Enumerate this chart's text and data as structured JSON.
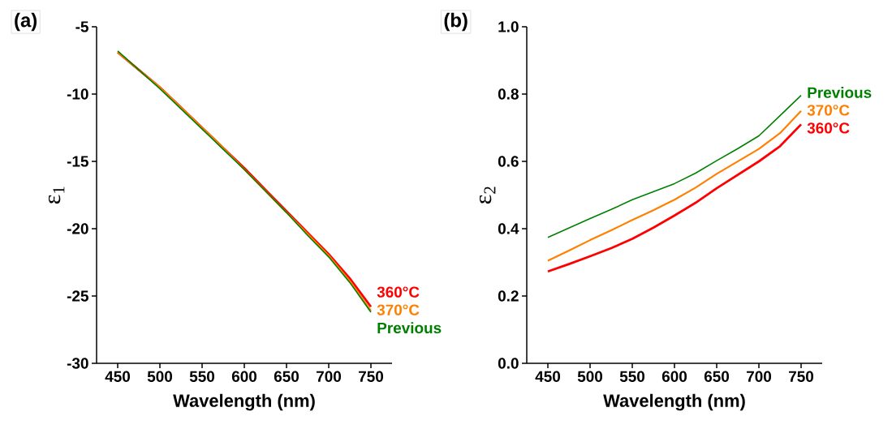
{
  "chart_data": [
    {
      "type": "line",
      "title": "(a)",
      "xlabel": "Wavelength (nm)",
      "ylabel": "ε$_{1}$",
      "x": [
        450,
        475,
        500,
        525,
        550,
        575,
        600,
        625,
        650,
        675,
        700,
        725,
        750
      ],
      "series": [
        {
          "name": "360°C",
          "color": "#ff0000",
          "values": [
            -6.9,
            -8.2,
            -9.5,
            -11.0,
            -12.5,
            -14.0,
            -15.5,
            -17.1,
            -18.7,
            -20.3,
            -21.9,
            -23.7,
            -25.8
          ]
        },
        {
          "name": "370°C",
          "color": "#ff8000",
          "values": [
            -6.9,
            -8.2,
            -9.5,
            -11.0,
            -12.5,
            -14.0,
            -15.6,
            -17.2,
            -18.8,
            -20.4,
            -22.0,
            -23.9,
            -26.1
          ]
        },
        {
          "name": "Previous",
          "color": "#008000",
          "values": [
            -6.8,
            -8.2,
            -9.6,
            -11.1,
            -12.6,
            -14.1,
            -15.6,
            -17.2,
            -18.8,
            -20.5,
            -22.1,
            -24.0,
            -26.2
          ]
        }
      ],
      "xlim": [
        425,
        775
      ],
      "ylim": [
        -30,
        -5
      ],
      "xticks": [
        450,
        500,
        550,
        600,
        650,
        700,
        750
      ],
      "yticks": [
        -30,
        -25,
        -20,
        -15,
        -10,
        -5
      ]
    },
    {
      "type": "line",
      "title": "(b)",
      "xlabel": "Wavelength (nm)",
      "ylabel": "ε$_{2}$",
      "x": [
        450,
        475,
        500,
        525,
        550,
        575,
        600,
        625,
        650,
        675,
        700,
        725,
        750
      ],
      "series": [
        {
          "name": "360°C",
          "color": "#ff0000",
          "values": [
            0.273,
            0.295,
            0.318,
            0.342,
            0.37,
            0.403,
            0.439,
            0.477,
            0.52,
            0.56,
            0.6,
            0.645,
            0.71
          ]
        },
        {
          "name": "370°C",
          "color": "#ff8000",
          "values": [
            0.305,
            0.335,
            0.366,
            0.395,
            0.426,
            0.455,
            0.486,
            0.522,
            0.563,
            0.6,
            0.637,
            0.684,
            0.75
          ]
        },
        {
          "name": "Previous",
          "color": "#008000",
          "values": [
            0.374,
            0.402,
            0.43,
            0.457,
            0.486,
            0.51,
            0.534,
            0.565,
            0.602,
            0.638,
            0.676,
            0.736,
            0.796
          ]
        }
      ],
      "xlim": [
        425,
        775
      ],
      "ylim": [
        0,
        1
      ],
      "xticks": [
        450,
        500,
        550,
        600,
        650,
        700,
        750
      ],
      "yticks": [
        {
          "value": 0,
          "label": "0.0"
        },
        0.2,
        0.4,
        0.6,
        0.8,
        {
          "value": 1,
          "label": "1.0"
        }
      ]
    }
  ]
}
